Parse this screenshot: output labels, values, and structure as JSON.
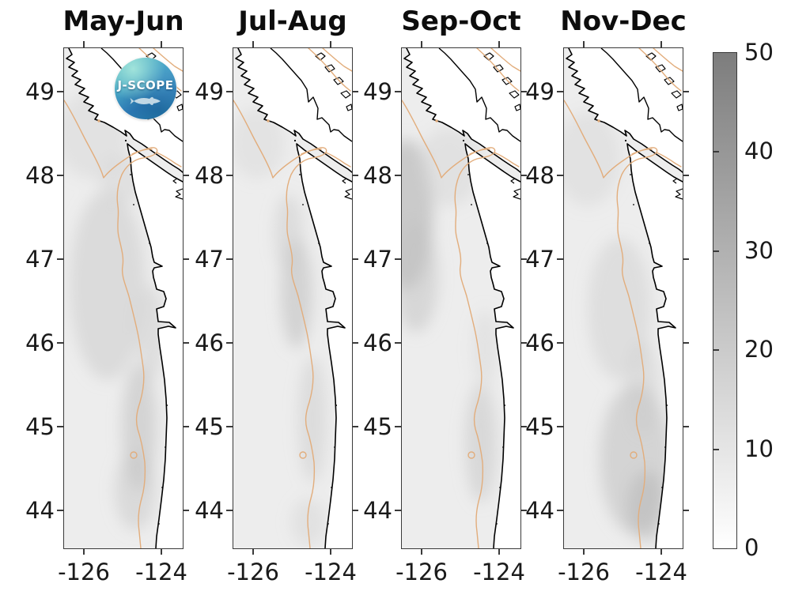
{
  "figure_title": "",
  "panels": [
    {
      "title": "May-Jun"
    },
    {
      "title": "Jul-Aug"
    },
    {
      "title": "Sep-Oct"
    },
    {
      "title": "Nov-Dec"
    }
  ],
  "axes": {
    "lat_tick_labels": [
      "49",
      "48",
      "47",
      "46",
      "45",
      "44"
    ],
    "lon_tick_labels": [
      "-126",
      "-124"
    ]
  },
  "colorbar": {
    "tick_labels": [
      "50",
      "40",
      "30",
      "20",
      "10",
      "0"
    ],
    "min": 0,
    "max": 50,
    "top_color": "#7d7d7d",
    "bottom_color": "#ffffff"
  },
  "logo": {
    "text": "J-SCOPE"
  },
  "colors": {
    "ocean_field": "#ededed",
    "land": "#ffffff",
    "coastline": "#000000",
    "shelf_contour": "#e2ad7c",
    "axis": "#3a3a3a",
    "text": "#1a1a1a"
  },
  "chart_data": {
    "type": "heatmap",
    "layout": "four vertical geographic map panels sharing one vertical grayscale colorbar on the right",
    "panels": [
      "May-Jun",
      "Jul-Aug",
      "Sep-Oct",
      "Nov-Dec"
    ],
    "x_axis": {
      "ticks": [
        -126,
        -124
      ],
      "range_approx": [
        -126.5,
        -123.5
      ]
    },
    "y_axis": {
      "ticks": [
        49,
        48,
        47,
        46,
        45,
        44
      ],
      "range_approx": [
        43.5,
        49.5
      ]
    },
    "colorbar": {
      "ticks": [
        0,
        10,
        20,
        30,
        40,
        50
      ],
      "range": [
        0,
        50
      ],
      "colormap": "white (0) to dark gray (50)",
      "position": "right"
    },
    "overlays": [
      "black coastline",
      "tan shelf-break depth contour",
      "small closed contour loop near 44.6N",
      "small contour dot near -125.6, 48.6"
    ],
    "region": "Pacific Northwest coast: Vancouver Island, Strait of Juan de Fuca, Washington and Oregon coast",
    "field_appearance": "mostly very light gray (values ~0-10) offshore; slightly darker gray patches along the shelf and near the coast; darkest shading at the northwest left edge in Sep-Oct and along the southern coast in May-Jun and Nov-Dec",
    "logo": "J-SCOPE badge overlaid on the May-Jun panel"
  }
}
